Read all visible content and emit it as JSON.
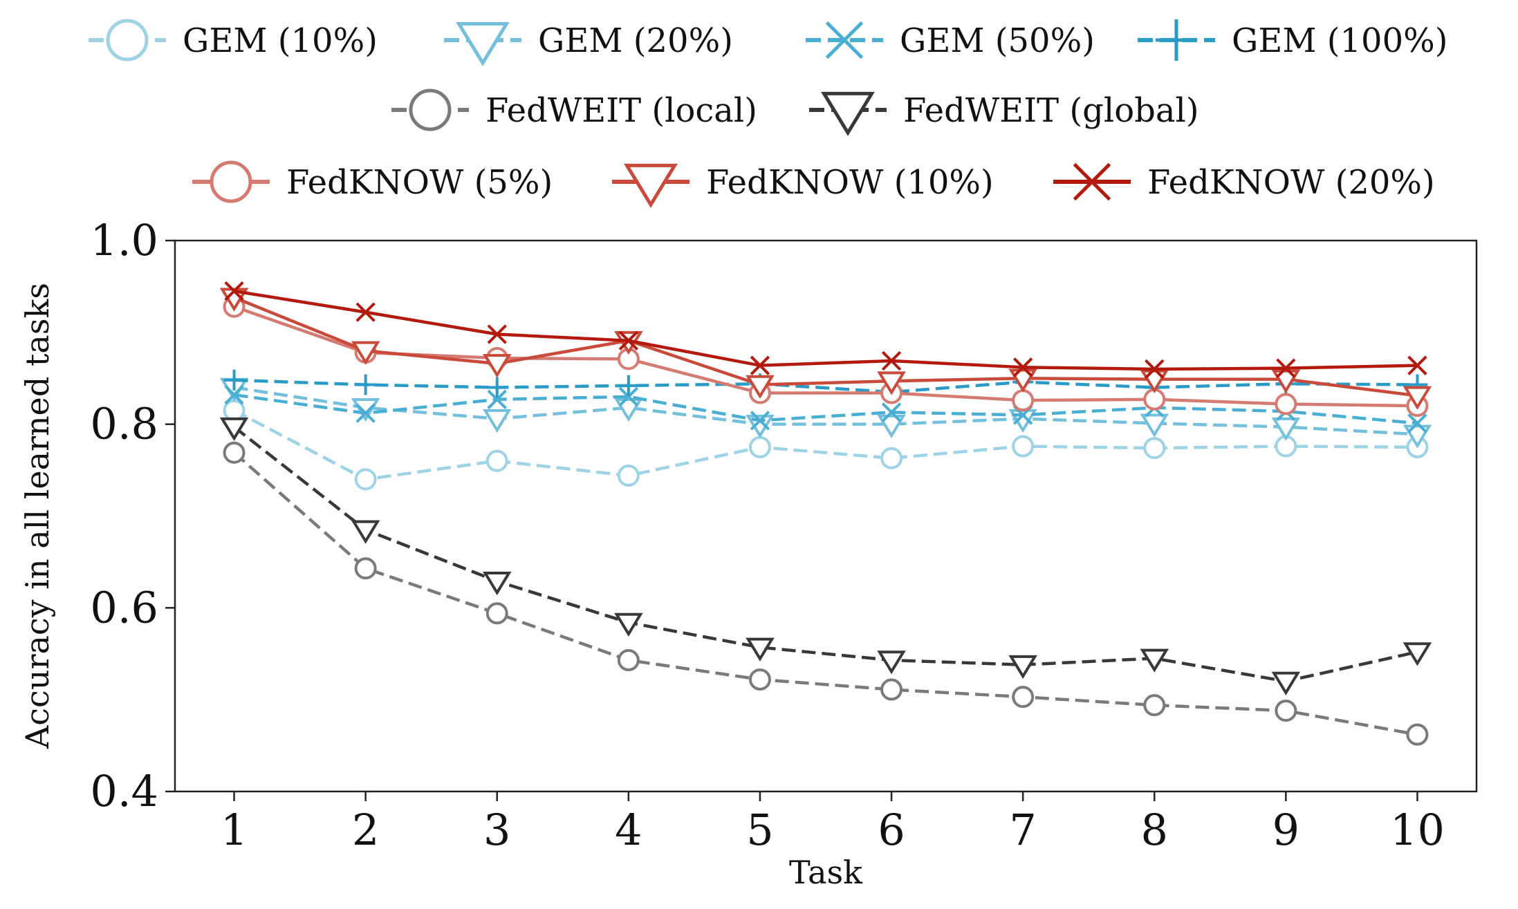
{
  "chart_data": {
    "type": "line",
    "title": "",
    "xlabel": "Task",
    "ylabel": "Accuracy in all learned tasks",
    "x": [
      1,
      2,
      3,
      4,
      5,
      6,
      7,
      8,
      9,
      10
    ],
    "xticks": [
      "1",
      "2",
      "3",
      "4",
      "5",
      "6",
      "7",
      "8",
      "9",
      "10"
    ],
    "xlim": [
      0.55,
      10.45
    ],
    "ylim": [
      0.4,
      1.0
    ],
    "yticks": [
      "0.4",
      "0.6",
      "0.8",
      "1.0"
    ],
    "grid": false,
    "legend_position": "top",
    "series": [
      {
        "name": "GEM (10%)",
        "color": "#9ed3e6",
        "marker": "circle",
        "dash": "dashed",
        "values": [
          0.815,
          0.74,
          0.76,
          0.744,
          0.775,
          0.763,
          0.776,
          0.774,
          0.776,
          0.775
        ]
      },
      {
        "name": "GEM (20%)",
        "color": "#74c0dc",
        "marker": "triangle-down",
        "dash": "dashed",
        "values": [
          0.84,
          0.818,
          0.806,
          0.818,
          0.8,
          0.8,
          0.806,
          0.801,
          0.797,
          0.789
        ]
      },
      {
        "name": "GEM (50%)",
        "color": "#49aed3",
        "marker": "x",
        "dash": "dashed",
        "values": [
          0.832,
          0.812,
          0.827,
          0.83,
          0.804,
          0.813,
          0.81,
          0.818,
          0.814,
          0.801
        ]
      },
      {
        "name": "GEM (100%)",
        "color": "#2a9ac6",
        "marker": "plus",
        "dash": "dashed",
        "values": [
          0.848,
          0.843,
          0.84,
          0.842,
          0.844,
          0.835,
          0.846,
          0.84,
          0.844,
          0.843
        ]
      },
      {
        "name": "FedWEIT (local)",
        "color": "#7a7a7a",
        "marker": "circle",
        "dash": "dashed",
        "values": [
          0.769,
          0.643,
          0.594,
          0.543,
          0.522,
          0.511,
          0.503,
          0.494,
          0.488,
          0.462
        ]
      },
      {
        "name": "FedWEIT (global)",
        "color": "#383838",
        "marker": "triangle-down",
        "dash": "dashed",
        "values": [
          0.797,
          0.685,
          0.629,
          0.584,
          0.557,
          0.543,
          0.538,
          0.545,
          0.52,
          0.552
        ]
      },
      {
        "name": "FedKNOW (5%)",
        "color": "#d57a70",
        "marker": "circle",
        "dash": "solid",
        "values": [
          0.928,
          0.878,
          0.872,
          0.871,
          0.834,
          0.834,
          0.826,
          0.827,
          0.822,
          0.82
        ]
      },
      {
        "name": "FedKNOW (10%)",
        "color": "#c94a3a",
        "marker": "triangle-down",
        "dash": "solid",
        "values": [
          0.938,
          0.88,
          0.866,
          0.891,
          0.843,
          0.847,
          0.85,
          0.849,
          0.849,
          0.831
        ]
      },
      {
        "name": "FedKNOW (20%)",
        "color": "#b31a0d",
        "marker": "x",
        "dash": "solid",
        "values": [
          0.945,
          0.922,
          0.898,
          0.891,
          0.864,
          0.869,
          0.862,
          0.86,
          0.861,
          0.864
        ]
      }
    ]
  }
}
